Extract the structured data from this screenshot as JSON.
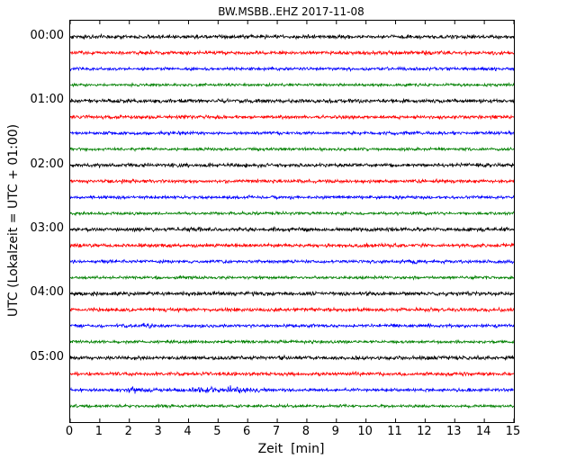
{
  "title": "BW.MSBB..EHZ 2017-11-08",
  "axes": {
    "xlabel": "Zeit  [min]",
    "ylabel": "UTC (Lokalzeit = UTC + 01:00)",
    "x_ticks": [
      "0",
      "1",
      "2",
      "3",
      "4",
      "5",
      "6",
      "7",
      "8",
      "9",
      "10",
      "11",
      "12",
      "13",
      "14",
      "15"
    ],
    "y_ticks": [
      {
        "label": "00:00",
        "row": 0
      },
      {
        "label": "01:00",
        "row": 4
      },
      {
        "label": "02:00",
        "row": 8
      },
      {
        "label": "03:00",
        "row": 12
      },
      {
        "label": "04:00",
        "row": 16
      },
      {
        "label": "05:00",
        "row": 20
      }
    ]
  },
  "chart_data": {
    "type": "line",
    "subtype": "seismogram_dayplot",
    "title": "BW.MSBB..EHZ 2017-11-08",
    "xlabel": "Zeit  [min]",
    "ylabel": "UTC (Lokalzeit = UTC + 01:00)",
    "xlim": [
      0,
      15
    ],
    "rows": 24,
    "minutes_per_row": 15,
    "grid": false,
    "legend": "none",
    "color_cycle": [
      "#000000",
      "#ff0000",
      "#0000ff",
      "#008000"
    ],
    "traces": [
      {
        "start": "00:00",
        "color": "#000000",
        "noise_amp": 1.25,
        "events": []
      },
      {
        "start": "00:15",
        "color": "#ff0000",
        "noise_amp": 1.15,
        "events": []
      },
      {
        "start": "00:30",
        "color": "#0000ff",
        "noise_amp": 1.05,
        "events": []
      },
      {
        "start": "00:45",
        "color": "#008000",
        "noise_amp": 0.95,
        "events": []
      },
      {
        "start": "01:00",
        "color": "#000000",
        "noise_amp": 1.25,
        "events": []
      },
      {
        "start": "01:15",
        "color": "#ff0000",
        "noise_amp": 1.15,
        "events": []
      },
      {
        "start": "01:30",
        "color": "#0000ff",
        "noise_amp": 1.05,
        "events": []
      },
      {
        "start": "01:45",
        "color": "#008000",
        "noise_amp": 0.95,
        "events": []
      },
      {
        "start": "02:00",
        "color": "#000000",
        "noise_amp": 1.25,
        "events": []
      },
      {
        "start": "02:15",
        "color": "#ff0000",
        "noise_amp": 1.15,
        "events": []
      },
      {
        "start": "02:30",
        "color": "#0000ff",
        "noise_amp": 1.05,
        "events": []
      },
      {
        "start": "02:45",
        "color": "#008000",
        "noise_amp": 0.95,
        "events": []
      },
      {
        "start": "03:00",
        "color": "#000000",
        "noise_amp": 1.25,
        "events": []
      },
      {
        "start": "03:15",
        "color": "#ff0000",
        "noise_amp": 1.15,
        "events": []
      },
      {
        "start": "03:30",
        "color": "#0000ff",
        "noise_amp": 1.05,
        "events": [
          {
            "t": 11.6,
            "amp": 1.2,
            "width": 0.12
          }
        ]
      },
      {
        "start": "03:45",
        "color": "#008000",
        "noise_amp": 0.95,
        "events": []
      },
      {
        "start": "04:00",
        "color": "#000000",
        "noise_amp": 1.25,
        "events": []
      },
      {
        "start": "04:15",
        "color": "#ff0000",
        "noise_amp": 1.15,
        "events": []
      },
      {
        "start": "04:30",
        "color": "#0000ff",
        "noise_amp": 1.05,
        "events": [
          {
            "t": 2.6,
            "amp": 1.4,
            "width": 0.15
          }
        ]
      },
      {
        "start": "04:45",
        "color": "#008000",
        "noise_amp": 0.95,
        "events": []
      },
      {
        "start": "05:00",
        "color": "#000000",
        "noise_amp": 1.25,
        "events": []
      },
      {
        "start": "05:15",
        "color": "#ff0000",
        "noise_amp": 1.15,
        "events": []
      },
      {
        "start": "05:30",
        "color": "#0000ff",
        "noise_amp": 1.05,
        "events": [
          {
            "t": 2.2,
            "amp": 1.2,
            "width": 0.4
          },
          {
            "t": 5.0,
            "amp": 0.9,
            "width": 1.0
          },
          {
            "t": 5.6,
            "amp": 1.6,
            "width": 0.2
          }
        ]
      },
      {
        "start": "05:45",
        "color": "#008000",
        "noise_amp": 0.95,
        "events": []
      }
    ]
  }
}
